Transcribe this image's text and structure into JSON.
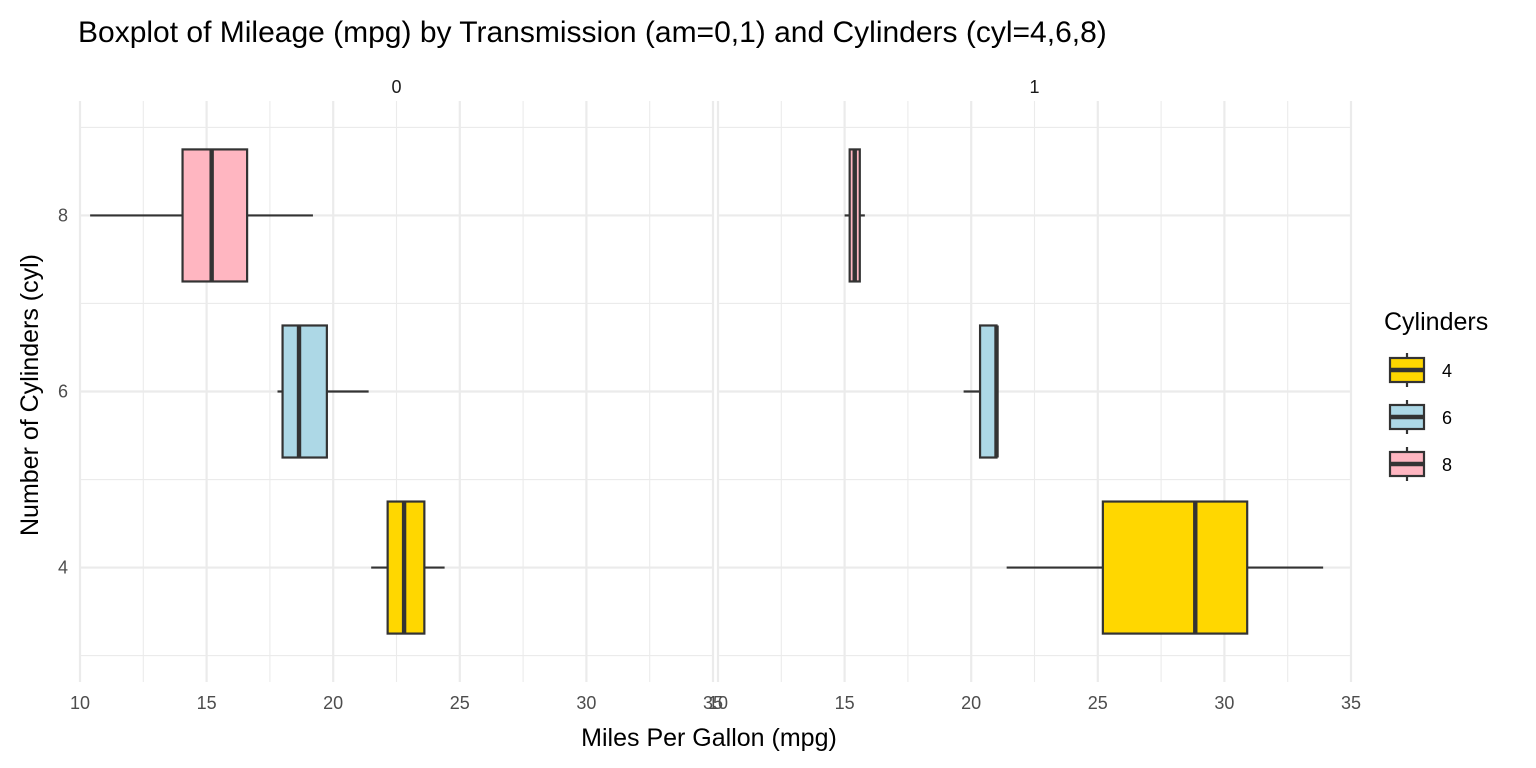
{
  "chart_data": {
    "type": "boxplot",
    "title": "Boxplot of Mileage (mpg) by Transmission (am=0,1) and Cylinders (cyl=4,6,8)",
    "xlabel": "Miles Per Gallon (mpg)",
    "ylabel": "Number of Cylinders (cyl)",
    "xlim": [
      10,
      35
    ],
    "ylim": [
      2.7,
      9.3
    ],
    "x_ticks": [
      10,
      15,
      20,
      25,
      30,
      35
    ],
    "y_ticks": [
      4,
      6,
      8
    ],
    "grid": true,
    "legend": {
      "title": "Cylinders",
      "placement": "right",
      "entries": [
        {
          "label": "4",
          "color": "#FFD700"
        },
        {
          "label": "6",
          "color": "#ADD8E6"
        },
        {
          "label": "8",
          "color": "#FFB6C1"
        }
      ]
    },
    "panels": [
      {
        "facet_label": "0",
        "boxes": [
          {
            "cyl": 4,
            "min": 21.5,
            "q1": 22.15,
            "median": 22.8,
            "q3": 23.6,
            "max": 24.4,
            "color": "#FFD700"
          },
          {
            "cyl": 6,
            "min": 17.8,
            "q1": 18.0,
            "median": 18.65,
            "q3": 19.75,
            "max": 21.4,
            "color": "#ADD8E6"
          },
          {
            "cyl": 8,
            "min": 10.4,
            "q1": 14.05,
            "median": 15.2,
            "q3": 16.6,
            "max": 19.2,
            "color": "#FFB6C1"
          }
        ]
      },
      {
        "facet_label": "1",
        "boxes": [
          {
            "cyl": 4,
            "min": 21.4,
            "q1": 25.2,
            "median": 28.85,
            "q3": 30.9,
            "max": 33.9,
            "color": "#FFD700"
          },
          {
            "cyl": 6,
            "min": 19.7,
            "q1": 20.35,
            "median": 21.0,
            "q3": 21.0,
            "max": 21.0,
            "color": "#ADD8E6"
          },
          {
            "cyl": 8,
            "min": 15.0,
            "q1": 15.2,
            "median": 15.4,
            "q3": 15.6,
            "max": 15.8,
            "color": "#FFB6C1"
          }
        ]
      }
    ]
  }
}
